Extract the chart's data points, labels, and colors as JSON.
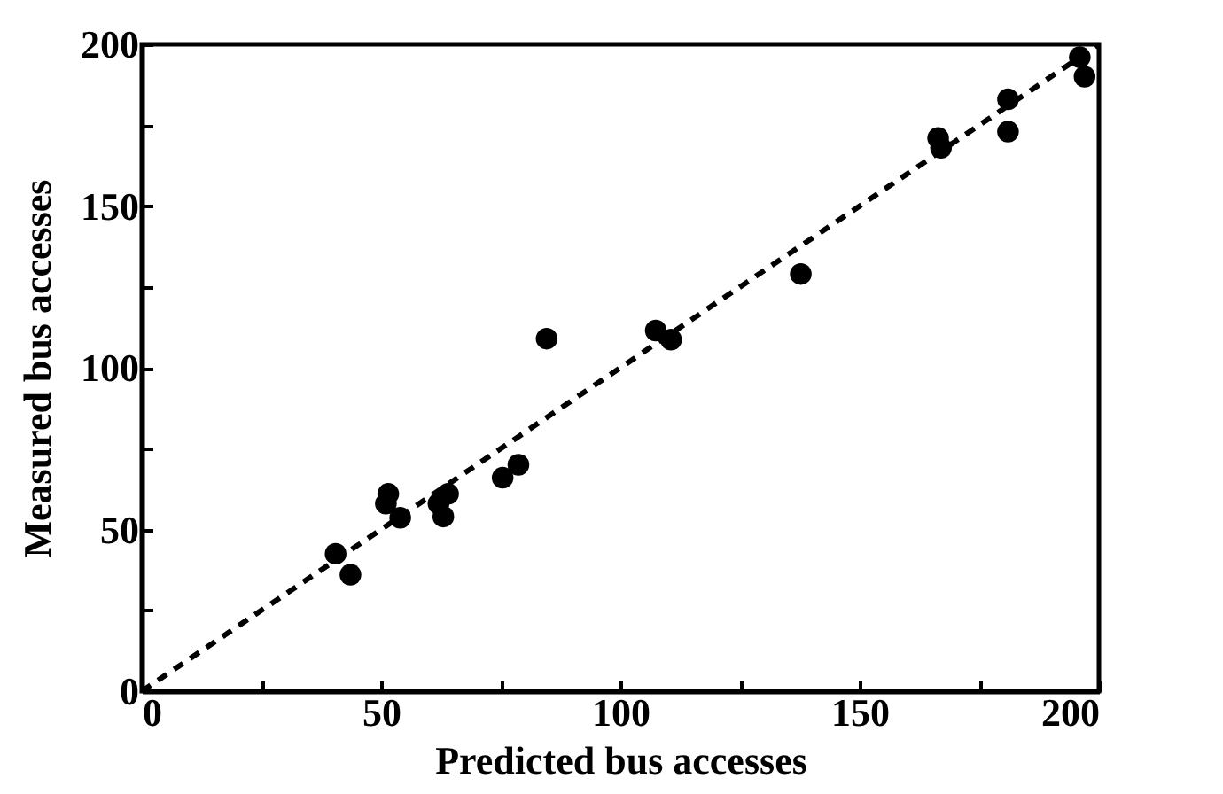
{
  "chart_data": {
    "type": "scatter",
    "xlabel": "Predicted bus accesses",
    "ylabel": "Measured bus accesses",
    "xlim": [
      0,
      200
    ],
    "ylim": [
      0,
      200
    ],
    "xticks": [
      0,
      {
        "value": 25,
        "label": null
      },
      50,
      {
        "value": 75,
        "label": null
      },
      100,
      {
        "value": 125,
        "label": null
      },
      150,
      {
        "value": 175,
        "label": null
      },
      200
    ],
    "yticks": [
      0,
      {
        "value": 25,
        "label": null
      },
      50,
      {
        "value": 75,
        "label": null
      },
      100,
      {
        "value": 125,
        "label": null
      },
      150,
      {
        "value": 175,
        "label": null
      },
      200
    ],
    "grid": false,
    "series": [
      {
        "marker": "circle",
        "color": "#000000",
        "x": [
          40.5,
          43.6,
          51.5,
          51,
          54,
          63,
          64,
          62,
          75.4,
          78.7,
          84.6,
          107.4,
          110.6,
          137.7,
          166.4,
          167,
          181,
          181,
          196,
          197
        ],
        "values": [
          42.5,
          36,
          61,
          58,
          53.6,
          54,
          61,
          58,
          66,
          70,
          109,
          111.5,
          108.7,
          129,
          171,
          168,
          183,
          173,
          196,
          190
        ]
      },
      {
        "type": "line",
        "color": "#000000",
        "line_style": "dashed",
        "x": [
          0,
          200
        ],
        "values": [
          0,
          200
        ]
      }
    ]
  }
}
